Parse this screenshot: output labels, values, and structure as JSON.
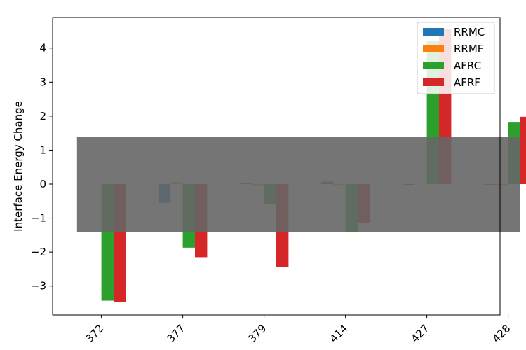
{
  "chart_data": {
    "type": "bar",
    "title": "",
    "xlabel": "",
    "ylabel": "Interface Energy Change",
    "categories": [
      "372",
      "377",
      "379",
      "414",
      "427",
      "428"
    ],
    "series": [
      {
        "name": "RRMC",
        "color": "#1f77b4",
        "values": [
          0.0,
          -0.55,
          0.02,
          0.07,
          -0.02,
          -0.02
        ]
      },
      {
        "name": "RRMF",
        "color": "#ff7f0e",
        "values": [
          0.0,
          0.05,
          -0.03,
          -0.02,
          0.0,
          -0.02
        ]
      },
      {
        "name": "AFRC",
        "color": "#2ca02c",
        "values": [
          -3.43,
          -1.87,
          -0.58,
          -1.42,
          4.2,
          1.83
        ]
      },
      {
        "name": "AFRF",
        "color": "#d62728",
        "values": [
          -3.46,
          -2.15,
          -2.45,
          -1.15,
          4.55,
          1.98
        ]
      }
    ],
    "band": {
      "lower": -1.4,
      "upper": 1.4,
      "color": "#666666"
    },
    "ylim": [
      -3.85,
      4.9
    ],
    "yticks": [
      -3,
      -2,
      -1,
      0,
      1,
      2,
      3,
      4
    ],
    "legend": "top-right",
    "grid": false
  }
}
